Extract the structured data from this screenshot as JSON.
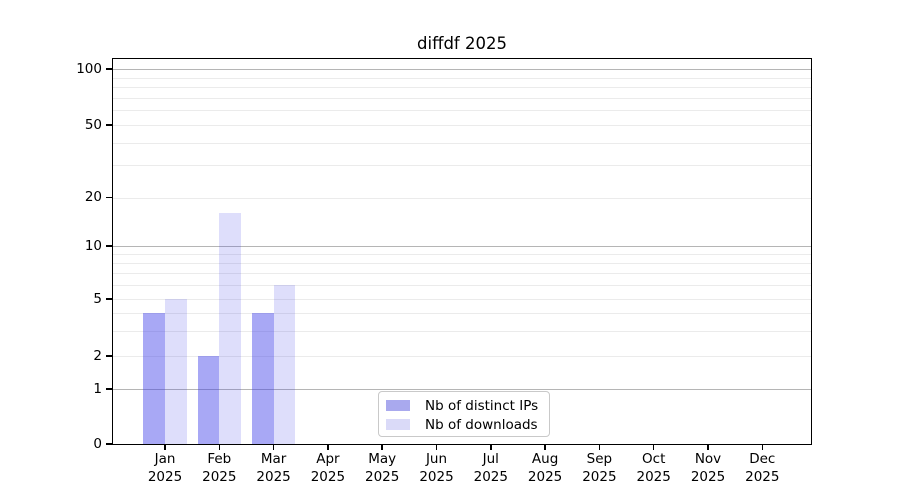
{
  "chart_data": {
    "type": "bar",
    "title": "diffdf 2025",
    "categories": [
      "Jan",
      "Feb",
      "Mar",
      "Apr",
      "May",
      "Jun",
      "Jul",
      "Aug",
      "Sep",
      "Oct",
      "Nov",
      "Dec"
    ],
    "year_label": "2025",
    "series": [
      {
        "name": "Nb of distinct IPs",
        "color": "rgba(62,62,232,0.45)",
        "color_hex": "#a9a9ee",
        "values": [
          4,
          2,
          4,
          0,
          0,
          0,
          0,
          0,
          0,
          0,
          0,
          0
        ]
      },
      {
        "name": "Nb of downloads",
        "color": "rgba(62,62,232,0.17)",
        "color_hex": "#dadaf8",
        "values": [
          5,
          16,
          6,
          0,
          0,
          0,
          0,
          0,
          0,
          0,
          0,
          0
        ]
      }
    ],
    "y_ticks": [
      0,
      1,
      2,
      5,
      10,
      20,
      50,
      100
    ],
    "y_major_gridlines": [
      1,
      10,
      100
    ],
    "y_minor_gridlines": [
      2,
      3,
      4,
      5,
      6,
      7,
      8,
      9,
      20,
      30,
      40,
      50,
      60,
      70,
      80,
      90
    ],
    "y_axis_scale": "symlog",
    "ylim": [
      0,
      115
    ],
    "legend_position": "bottom-center",
    "grid": true
  }
}
